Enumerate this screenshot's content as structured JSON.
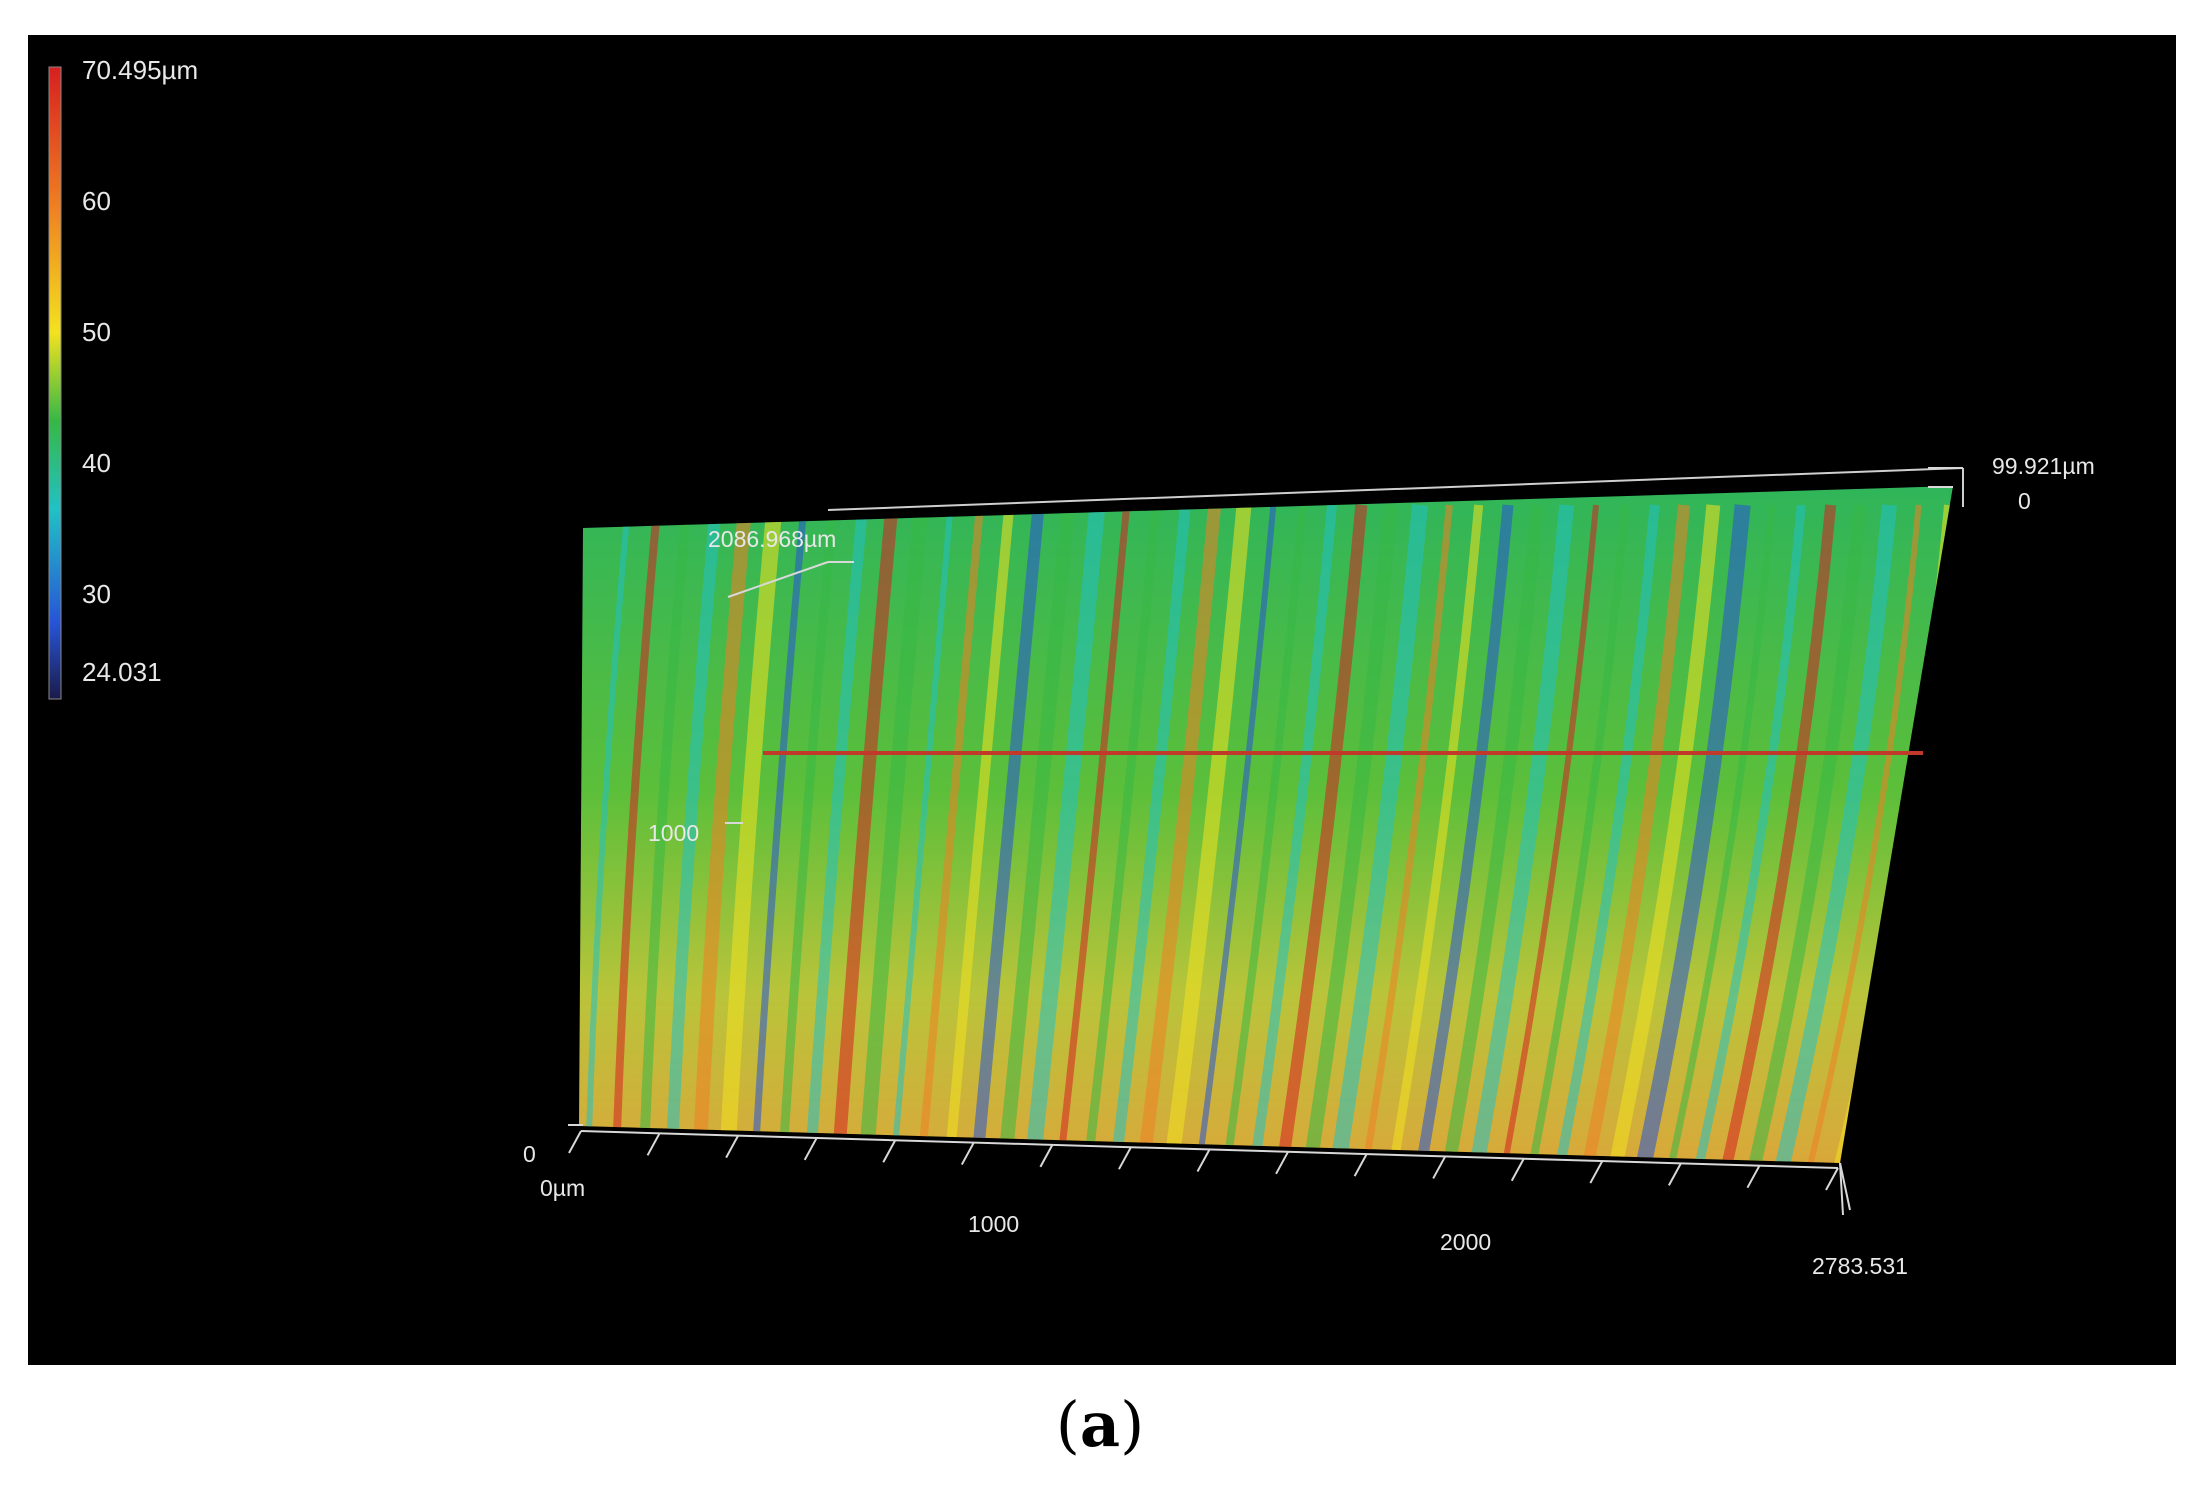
{
  "figure": {
    "caption_open": "(",
    "caption_letter": "a",
    "caption_close": ")"
  },
  "colorbar": {
    "max_label": "70.495µm",
    "min_label": "24.031",
    "ticks": [
      "60",
      "50",
      "40",
      "30"
    ],
    "colors": [
      "#d62020",
      "#ef7f22",
      "#f3e21f",
      "#36b845",
      "#21c1c6",
      "#2754d6",
      "#1b1b4a"
    ]
  },
  "axes": {
    "x_labels": [
      "0µm",
      "1000",
      "2000",
      "2783.531"
    ],
    "y_labels": [
      "0",
      "1000",
      "2086.968µm"
    ],
    "z_labels": [
      "99.921µm",
      "0"
    ]
  },
  "profile_line": {
    "color": "#c0392b"
  },
  "surface": {
    "type": "3D height map",
    "height_range_um": [
      24.031,
      70.495
    ],
    "x_range_um": [
      0,
      2783.531
    ],
    "y_range_um": [
      0,
      2086.968
    ],
    "z_range_um": [
      0,
      99.921
    ]
  }
}
